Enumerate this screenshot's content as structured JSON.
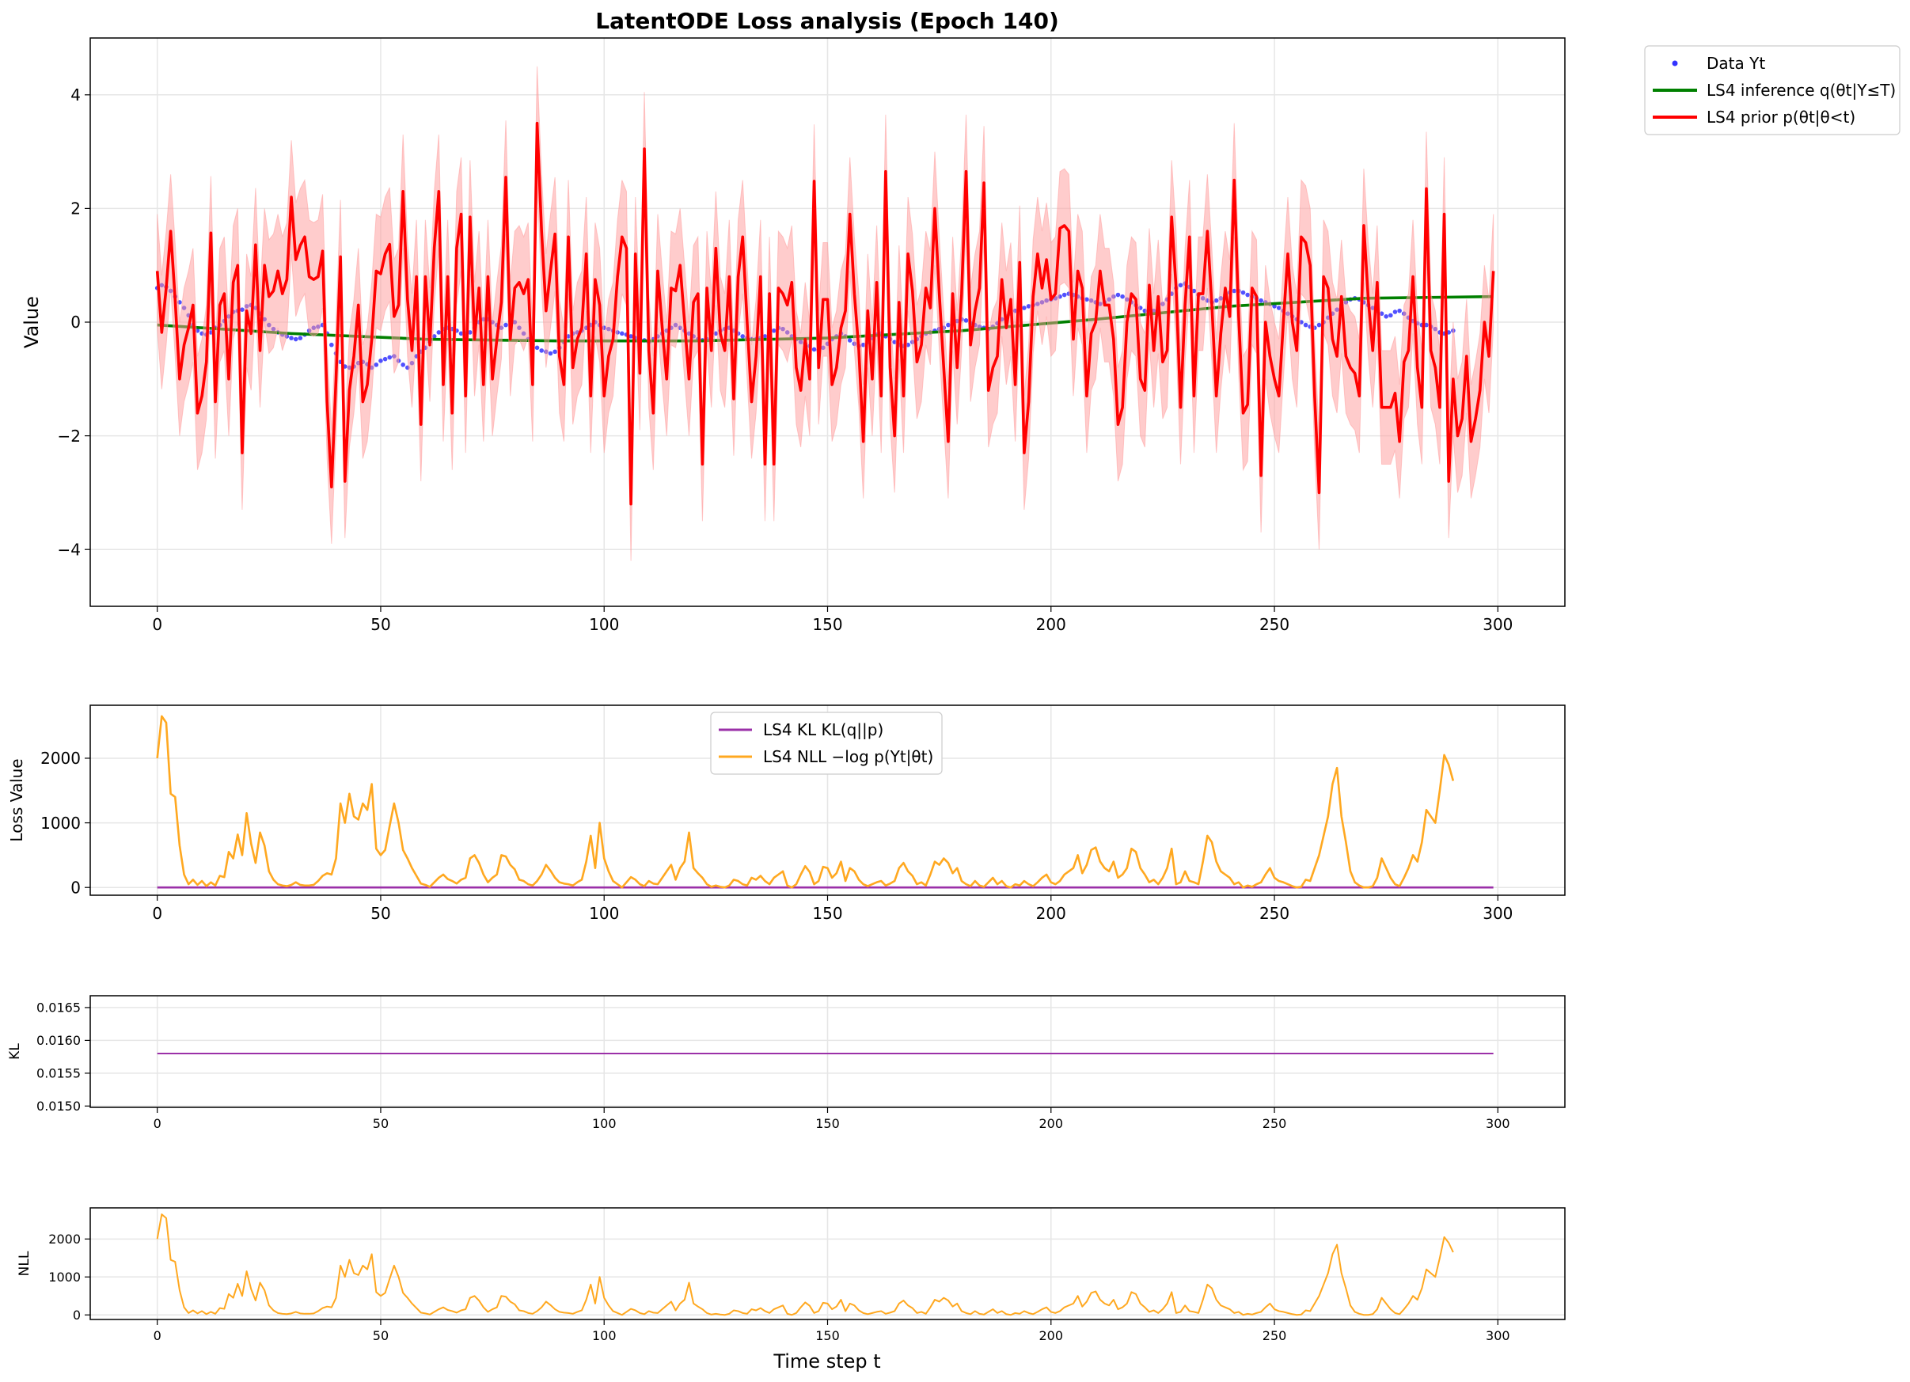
{
  "figure": {
    "title": "LatentODE Loss analysis (Epoch 140)",
    "xlabel": "Time step t"
  },
  "colors": {
    "data": "#3333ff",
    "inference": "#008000",
    "prior": "#ff0000",
    "prior_band": "#ff9999",
    "kl": "#9b30a8",
    "nll": "#ffa820"
  },
  "chart_data": [
    {
      "id": "main",
      "type": "line",
      "ylabel": "Value",
      "xlim": [
        -15,
        315
      ],
      "ylim": [
        -5,
        5
      ],
      "xticks": [
        0,
        50,
        100,
        150,
        200,
        250,
        300
      ],
      "yticks": [
        -4,
        -2,
        0,
        2,
        4
      ],
      "grid": true,
      "legend": {
        "placement": "outside-top-right",
        "entries": [
          "Data Yt",
          "LS4 inference q(θt|Y≤T)",
          "LS4 prior p(θt|θ<t)"
        ]
      },
      "series": [
        {
          "name": "Data Yt",
          "kind": "scatter",
          "x_start": 0,
          "x_step": 1,
          "values": [
            0.6,
            0.65,
            0.62,
            0.55,
            0.45,
            0.35,
            0.25,
            0.12,
            -0.05,
            -0.15,
            -0.2,
            -0.22,
            -0.18,
            -0.1,
            -0.05,
            0.02,
            0.1,
            0.18,
            0.2,
            0.22,
            0.28,
            0.3,
            0.25,
            0.15,
            0.05,
            -0.05,
            -0.12,
            -0.18,
            -0.22,
            -0.25,
            -0.28,
            -0.3,
            -0.28,
            -0.22,
            -0.15,
            -0.1,
            -0.08,
            -0.05,
            -0.2,
            -0.4,
            -0.55,
            -0.7,
            -0.78,
            -0.8,
            -0.78,
            -0.72,
            -0.7,
            -0.74,
            -0.8,
            -0.75,
            -0.68,
            -0.65,
            -0.62,
            -0.6,
            -0.68,
            -0.75,
            -0.8,
            -0.72,
            -0.6,
            -0.52,
            -0.45,
            -0.35,
            -0.25,
            -0.18,
            -0.12,
            -0.1,
            -0.12,
            -0.15,
            -0.2,
            -0.2,
            -0.18,
            -0.1,
            0.0,
            0.05,
            0.05,
            0.0,
            -0.05,
            -0.1,
            -0.05,
            0.02,
            0.0,
            -0.1,
            -0.2,
            -0.3,
            -0.4,
            -0.45,
            -0.5,
            -0.52,
            -0.55,
            -0.52,
            -0.45,
            -0.35,
            -0.25,
            -0.2,
            -0.18,
            -0.15,
            -0.1,
            -0.05,
            0.0,
            -0.05,
            -0.1,
            -0.12,
            -0.15,
            -0.18,
            -0.2,
            -0.22,
            -0.25,
            -0.28,
            -0.3,
            -0.32,
            -0.35,
            -0.3,
            -0.25,
            -0.2,
            -0.15,
            -0.1,
            -0.05,
            -0.1,
            -0.15,
            -0.2,
            -0.25,
            -0.3,
            -0.32,
            -0.3,
            -0.25,
            -0.2,
            -0.15,
            -0.12,
            -0.1,
            -0.15,
            -0.2,
            -0.25,
            -0.28,
            -0.3,
            -0.3,
            -0.28,
            -0.25,
            -0.2,
            -0.15,
            -0.1,
            -0.12,
            -0.18,
            -0.25,
            -0.3,
            -0.35,
            -0.38,
            -0.42,
            -0.48,
            -0.5,
            -0.45,
            -0.38,
            -0.3,
            -0.25,
            -0.2,
            -0.25,
            -0.32,
            -0.38,
            -0.42,
            -0.4,
            -0.35,
            -0.28,
            -0.22,
            -0.2,
            -0.25,
            -0.3,
            -0.35,
            -0.4,
            -0.42,
            -0.4,
            -0.35,
            -0.3,
            -0.25,
            -0.2,
            -0.18,
            -0.15,
            -0.12,
            -0.1,
            -0.05,
            0.0,
            0.02,
            0.05,
            0.03,
            -0.02,
            -0.05,
            -0.08,
            -0.1,
            -0.12,
            -0.08,
            -0.02,
            0.05,
            0.1,
            0.15,
            0.2,
            0.22,
            0.25,
            0.28,
            0.3,
            0.32,
            0.35,
            0.38,
            0.4,
            0.42,
            0.45,
            0.48,
            0.5,
            0.48,
            0.45,
            0.42,
            0.4,
            0.38,
            0.35,
            0.32,
            0.35,
            0.4,
            0.45,
            0.48,
            0.45,
            0.4,
            0.35,
            0.3,
            0.25,
            0.2,
            0.18,
            0.2,
            0.25,
            0.32,
            0.4,
            0.5,
            0.6,
            0.65,
            0.68,
            0.62,
            0.55,
            0.48,
            0.42,
            0.38,
            0.35,
            0.38,
            0.42,
            0.48,
            0.52,
            0.55,
            0.55,
            0.52,
            0.48,
            0.45,
            0.42,
            0.38,
            0.35,
            0.32,
            0.28,
            0.25,
            0.2,
            0.15,
            0.1,
            0.05,
            0.0,
            -0.05,
            -0.08,
            -0.1,
            -0.05,
            0.0,
            0.08,
            0.15,
            0.22,
            0.3,
            0.35,
            0.4,
            0.42,
            0.4,
            0.35,
            0.3,
            0.25,
            0.2,
            0.15,
            0.1,
            0.12,
            0.18,
            0.2,
            0.15,
            0.08,
            0.02,
            -0.02,
            -0.05,
            -0.05,
            -0.08,
            -0.12,
            -0.18,
            -0.2,
            -0.18,
            -0.15
          ]
        },
        {
          "name": "LS4 inference q(θt|Y≤T)",
          "kind": "line",
          "x": [
            0,
            30,
            60,
            90,
            120,
            150,
            180,
            210,
            240,
            270,
            299
          ],
          "y": [
            -0.05,
            -0.2,
            -0.3,
            -0.33,
            -0.33,
            -0.28,
            -0.15,
            0.05,
            0.28,
            0.42,
            0.45
          ]
        },
        {
          "name": "LS4 prior p(θt|θ<t)",
          "kind": "line_band",
          "band_halfwidth": 1.0,
          "x_start": 0,
          "x_step": 1,
          "values": [
            0.9,
            -0.18,
            0.6,
            1.6,
            0.4,
            -1.0,
            -0.4,
            -0.1,
            0.3,
            -1.6,
            -1.3,
            -0.7,
            1.57,
            -1.4,
            0.3,
            0.5,
            -1.0,
            0.7,
            1.0,
            -2.3,
            0.2,
            -0.2,
            1.36,
            -0.5,
            1.0,
            0.45,
            0.55,
            0.9,
            0.5,
            0.75,
            2.2,
            1.1,
            1.35,
            1.5,
            0.8,
            0.75,
            0.8,
            1.25,
            -1.4,
            -2.9,
            -1.0,
            1.15,
            -2.8,
            -1.2,
            -0.6,
            0.3,
            -1.4,
            -1.1,
            -0.3,
            0.9,
            0.85,
            1.2,
            1.37,
            0.1,
            0.3,
            2.3,
            0.4,
            -0.5,
            0.8,
            -1.8,
            0.8,
            -0.4,
            1.32,
            2.3,
            -1.1,
            0.8,
            -1.6,
            1.3,
            1.9,
            -1.3,
            1.85,
            -0.3,
            0.6,
            -1.1,
            0.8,
            -1.0,
            -0.3,
            0.35,
            2.55,
            -0.3,
            0.6,
            0.7,
            0.5,
            0.75,
            -1.1,
            3.5,
            1.6,
            0.2,
            0.9,
            1.55,
            -0.6,
            -1.1,
            1.5,
            -0.8,
            -0.3,
            -0.1,
            1.2,
            -1.3,
            0.75,
            0.3,
            -1.3,
            -0.6,
            -0.3,
            0.8,
            1.5,
            1.3,
            -3.2,
            1.2,
            -0.9,
            3.05,
            -0.5,
            -1.6,
            0.9,
            -0.1,
            -1.0,
            0.6,
            0.55,
            1.0,
            0.0,
            -1.0,
            0.35,
            0.5,
            -2.5,
            0.6,
            -0.5,
            1.3,
            -0.2,
            -0.5,
            0.8,
            -1.35,
            0.8,
            1.5,
            0.0,
            -1.4,
            -0.6,
            0.8,
            -2.5,
            0.5,
            -2.5,
            0.6,
            0.5,
            0.3,
            0.7,
            -0.8,
            -1.2,
            -0.3,
            -1.0,
            2.48,
            -0.8,
            0.4,
            0.4,
            -1.1,
            -0.8,
            -0.1,
            0.2,
            1.9,
            0.5,
            -0.5,
            -2.1,
            0.2,
            -1.0,
            0.7,
            -1.3,
            2.65,
            -0.8,
            -2.0,
            0.35,
            -1.3,
            1.2,
            0.55,
            -0.7,
            -0.4,
            0.6,
            0.25,
            2.0,
            0.5,
            -0.8,
            -2.1,
            0.5,
            -0.8,
            0.5,
            2.65,
            -0.4,
            0.2,
            0.6,
            2.45,
            -1.2,
            -0.8,
            -0.6,
            0.75,
            -0.1,
            0.4,
            -1.1,
            1.05,
            -2.3,
            -1.4,
            0.45,
            1.2,
            0.6,
            1.1,
            0.4,
            0.5,
            1.65,
            1.7,
            1.6,
            -0.3,
            0.9,
            0.6,
            -1.3,
            -0.2,
            0.0,
            0.9,
            0.3,
            0.3,
            -0.3,
            -1.8,
            -1.5,
            0.0,
            0.5,
            0.4,
            -1.0,
            -1.2,
            0.65,
            -0.5,
            0.45,
            -0.7,
            -0.5,
            1.85,
            0.6,
            -1.5,
            0.3,
            1.5,
            -1.3,
            0.5,
            0.5,
            1.6,
            0.3,
            -1.3,
            -0.2,
            0.6,
            0.1,
            2.5,
            0.1,
            -1.6,
            -1.45,
            0.6,
            0.45,
            -2.7,
            0.0,
            -0.6,
            -1.0,
            -1.3,
            0.0,
            1.2,
            0.0,
            -0.5,
            1.5,
            1.4,
            1.0,
            -1.3,
            -3.0,
            0.8,
            0.6,
            -0.3,
            -0.6,
            0.45,
            -0.6,
            -0.8,
            -0.9,
            -1.3,
            1.7,
            0.4,
            -0.5,
            0.7,
            -1.5,
            -1.5,
            -1.5,
            -1.25,
            -2.1,
            -0.7,
            -0.5,
            0.8,
            -0.8,
            -1.5,
            2.35,
            -0.5,
            -0.8,
            -1.5,
            1.9,
            -2.8,
            -1.0,
            -2.0,
            -1.7,
            -0.6,
            -2.1,
            -1.7,
            -1.2,
            0.0,
            -0.6,
            0.9
          ]
        }
      ]
    },
    {
      "id": "loss",
      "type": "line",
      "ylabel": "Loss Value",
      "xlim": [
        -15,
        315
      ],
      "ylim": [
        -120,
        2820
      ],
      "xticks": [
        0,
        50,
        100,
        150,
        200,
        250,
        300
      ],
      "yticks": [
        0,
        1000,
        2000
      ],
      "grid": true,
      "legend": {
        "placement": "upper-center",
        "entries": [
          "LS4 KL KL(q||p)",
          "LS4 NLL −log p(Yt|θt)"
        ]
      },
      "series": [
        {
          "name": "LS4 KL KL(q||p)",
          "kind": "line",
          "x": [
            0,
            299
          ],
          "y": [
            0.0158,
            0.0158
          ]
        },
        {
          "name": "LS4 NLL −log p(Yt|θt)",
          "kind": "line",
          "x_start": 0,
          "x_step": 1,
          "values": [
            2000,
            2650,
            2550,
            1450,
            1400,
            650,
            200,
            50,
            120,
            40,
            100,
            20,
            80,
            30,
            180,
            160,
            550,
            450,
            820,
            500,
            1150,
            680,
            380,
            850,
            650,
            250,
            120,
            50,
            30,
            20,
            40,
            80,
            40,
            30,
            30,
            40,
            100,
            180,
            220,
            200,
            450,
            1300,
            1000,
            1450,
            1100,
            1050,
            1300,
            1200,
            1600,
            600,
            500,
            580,
            950,
            1300,
            1000,
            580,
            450,
            300,
            180,
            60,
            40,
            10,
            80,
            150,
            200,
            130,
            100,
            60,
            120,
            150,
            450,
            500,
            380,
            200,
            80,
            150,
            200,
            500,
            480,
            350,
            280,
            120,
            100,
            50,
            30,
            100,
            200,
            350,
            260,
            150,
            80,
            60,
            50,
            30,
            80,
            120,
            400,
            800,
            300,
            1000,
            450,
            250,
            100,
            50,
            0,
            80,
            160,
            120,
            50,
            20,
            100,
            60,
            50,
            150,
            250,
            350,
            120,
            300,
            400,
            850,
            300,
            220,
            150,
            50,
            10,
            30,
            10,
            0,
            30,
            120,
            100,
            50,
            30,
            150,
            120,
            180,
            100,
            50,
            150,
            200,
            250,
            30,
            0,
            50,
            200,
            330,
            240,
            50,
            100,
            320,
            300,
            150,
            220,
            400,
            100,
            300,
            250,
            120,
            50,
            20,
            50,
            80,
            100,
            30,
            60,
            100,
            300,
            380,
            250,
            180,
            50,
            80,
            30,
            200,
            400,
            350,
            450,
            380,
            220,
            300,
            100,
            50,
            20,
            100,
            30,
            10,
            80,
            150,
            50,
            100,
            20,
            0,
            50,
            30,
            100,
            50,
            20,
            80,
            150,
            200,
            80,
            50,
            100,
            200,
            250,
            300,
            500,
            220,
            350,
            580,
            620,
            400,
            300,
            250,
            400,
            150,
            200,
            300,
            600,
            550,
            300,
            200,
            80,
            120,
            50,
            150,
            300,
            600,
            50,
            80,
            250,
            100,
            80,
            50,
            400,
            800,
            700,
            400,
            250,
            200,
            150,
            50,
            80,
            0,
            30,
            10,
            50,
            80,
            200,
            300,
            150,
            100,
            80,
            50,
            20,
            0,
            10,
            120,
            100,
            300,
            500,
            800,
            1100,
            1600,
            1850,
            1100,
            700,
            250,
            80,
            30,
            0,
            0,
            20,
            150,
            450,
            300,
            150,
            50,
            20,
            150,
            300,
            500,
            400,
            700,
            1200,
            1100,
            1000,
            1500,
            2050,
            1900,
            1650
          ]
        }
      ]
    },
    {
      "id": "kl",
      "type": "line",
      "ylabel": "KL",
      "xlim": [
        -15,
        315
      ],
      "ylim": [
        0.01498,
        0.01668
      ],
      "xticks": [
        0,
        50,
        100,
        150,
        200,
        250,
        300
      ],
      "yticks": [
        0.015,
        0.0155,
        0.016,
        0.0165
      ],
      "ytick_labels": [
        "0.0150",
        "0.0155",
        "0.0160",
        "0.0165"
      ],
      "grid": true,
      "series": [
        {
          "kind": "line",
          "x": [
            0,
            299
          ],
          "y": [
            0.0158,
            0.0158
          ]
        }
      ]
    },
    {
      "id": "nll",
      "type": "line",
      "ylabel": "NLL",
      "xlabel": "Time step t",
      "xlim": [
        -15,
        315
      ],
      "ylim": [
        -120,
        2820
      ],
      "xticks": [
        0,
        50,
        100,
        150,
        200,
        250,
        300
      ],
      "yticks": [
        0,
        1000,
        2000
      ],
      "grid": true,
      "series": [
        {
          "kind": "line",
          "same_as": "loss.series.1"
        }
      ]
    }
  ]
}
